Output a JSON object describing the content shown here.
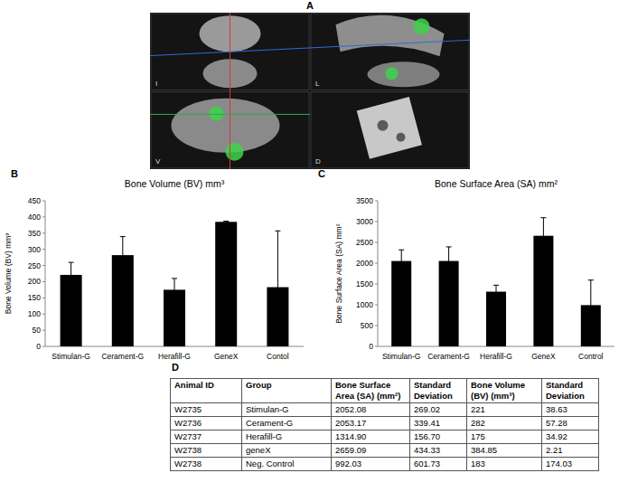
{
  "chart_data": [
    {
      "type": "bar",
      "panel": "B",
      "title": "Bone Volume (BV) mm³",
      "y_label": "Bone Volume (BV) mm³",
      "categories": [
        "Stimulan-G",
        "Cerament-G",
        "Herafill-G",
        "GeneX",
        "Contol"
      ],
      "values": [
        221,
        282,
        175,
        384.85,
        183
      ],
      "errors": [
        38.63,
        57.28,
        34.92,
        2.21,
        174.03
      ],
      "color": "#000000",
      "ylim": [
        0,
        450
      ],
      "yticks": [
        0,
        50,
        100,
        150,
        200,
        250,
        300,
        350,
        400,
        450
      ],
      "grid": false
    },
    {
      "type": "bar",
      "panel": "C",
      "title": "Bone Surface Area (SA) mm²",
      "y_label": "Bone Surface Area (SA) mm²",
      "categories": [
        "Stimulan-G",
        "Cerament-G",
        "Herafill-G",
        "GeneX",
        "Control"
      ],
      "values": [
        2052.08,
        2053.17,
        1314.9,
        2659.09,
        992.03
      ],
      "errors": [
        269.02,
        339.41,
        156.7,
        434.33,
        601.73
      ],
      "color": "#000000",
      "ylim": [
        0,
        3500
      ],
      "yticks": [
        0,
        500,
        1000,
        1500,
        2000,
        2500,
        3000,
        3500
      ],
      "grid": false
    }
  ],
  "figure_a": {
    "panel": "A",
    "views": [
      "I",
      "L",
      "V",
      "D"
    ]
  },
  "table": {
    "panel": "D",
    "header": [
      "Animal ID",
      "Group",
      "Bone Surface Area (SA) (mm²)",
      "Standard Deviation",
      "Bone Volume (BV) (mm³)",
      "Standard Deviation"
    ],
    "rows": [
      [
        "W2735",
        "Stimulan-G",
        "2052.08",
        "269.02",
        "221",
        "38.63"
      ],
      [
        "W2736",
        "Cerament-G",
        "2053.17",
        "339.41",
        "282",
        "57.28"
      ],
      [
        "W2737",
        "Herafill-G",
        "1314.90",
        "156.70",
        "175",
        "34.92"
      ],
      [
        "W2738",
        "geneX",
        "2659.09",
        "434.33",
        "384.85",
        "2.21"
      ],
      [
        "W2738",
        "Neg. Control",
        "992.03",
        "601.73",
        "183",
        "174.03"
      ]
    ]
  }
}
